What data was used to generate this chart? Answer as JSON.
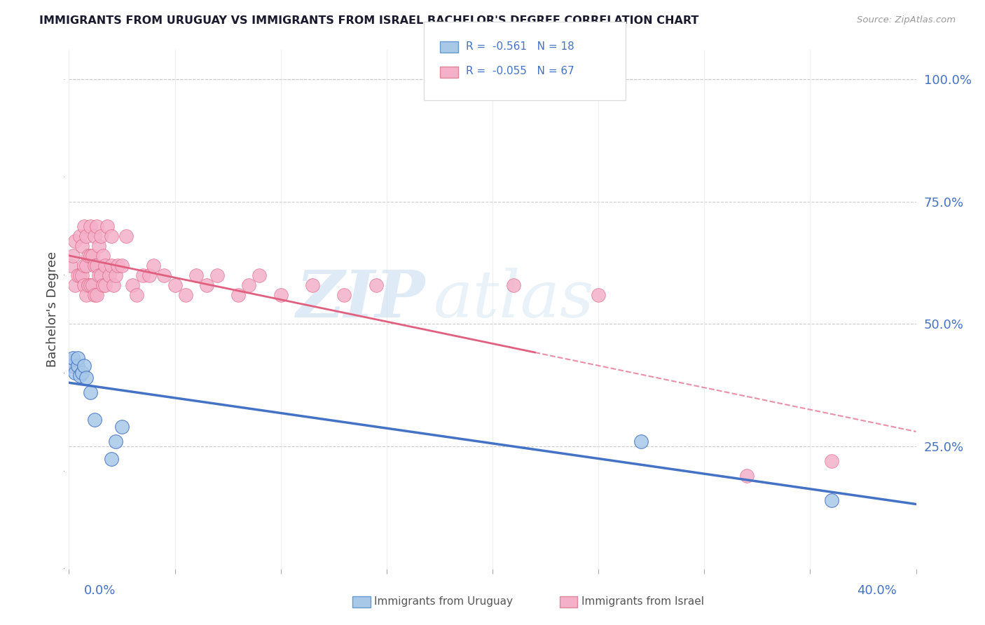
{
  "title": "IMMIGRANTS FROM URUGUAY VS IMMIGRANTS FROM ISRAEL BACHELOR'S DEGREE CORRELATION CHART",
  "source": "Source: ZipAtlas.com",
  "ylabel": "Bachelor's Degree",
  "y_ticks": [
    0.25,
    0.5,
    0.75,
    1.0
  ],
  "y_tick_labels": [
    "25.0%",
    "50.0%",
    "75.0%",
    "100.0%"
  ],
  "xlim": [
    0.0,
    0.4
  ],
  "ylim": [
    0.0,
    1.06
  ],
  "legend_label1": "R =  -0.561   N = 18",
  "legend_label2": "R =  -0.055   N = 67",
  "series_uruguay": {
    "color": "#a8c8e8",
    "edge_color": "#4472c4",
    "line_color": "#4472c4",
    "x": [
      0.001,
      0.001,
      0.002,
      0.002,
      0.003,
      0.004,
      0.004,
      0.005,
      0.006,
      0.007,
      0.008,
      0.01,
      0.012,
      0.02,
      0.022,
      0.025,
      0.27,
      0.36
    ],
    "y": [
      0.415,
      0.425,
      0.415,
      0.43,
      0.4,
      0.415,
      0.43,
      0.395,
      0.4,
      0.415,
      0.39,
      0.36,
      0.305,
      0.225,
      0.26,
      0.29,
      0.26,
      0.14
    ]
  },
  "series_israel": {
    "color": "#f4b0c8",
    "edge_color": "#e06080",
    "line_color": "#e06080",
    "x": [
      0.001,
      0.002,
      0.003,
      0.003,
      0.004,
      0.005,
      0.005,
      0.006,
      0.006,
      0.007,
      0.007,
      0.007,
      0.008,
      0.008,
      0.008,
      0.009,
      0.009,
      0.01,
      0.01,
      0.01,
      0.011,
      0.011,
      0.012,
      0.012,
      0.012,
      0.013,
      0.013,
      0.013,
      0.014,
      0.014,
      0.015,
      0.015,
      0.016,
      0.016,
      0.017,
      0.017,
      0.018,
      0.019,
      0.02,
      0.02,
      0.021,
      0.022,
      0.023,
      0.025,
      0.027,
      0.03,
      0.032,
      0.035,
      0.038,
      0.04,
      0.045,
      0.05,
      0.055,
      0.06,
      0.065,
      0.07,
      0.08,
      0.085,
      0.09,
      0.1,
      0.115,
      0.13,
      0.145,
      0.21,
      0.25,
      0.32,
      0.36
    ],
    "y": [
      0.62,
      0.64,
      0.58,
      0.67,
      0.6,
      0.6,
      0.68,
      0.6,
      0.66,
      0.58,
      0.62,
      0.7,
      0.56,
      0.62,
      0.68,
      0.58,
      0.64,
      0.58,
      0.64,
      0.7,
      0.58,
      0.64,
      0.56,
      0.62,
      0.68,
      0.56,
      0.62,
      0.7,
      0.6,
      0.66,
      0.6,
      0.68,
      0.58,
      0.64,
      0.58,
      0.62,
      0.7,
      0.6,
      0.62,
      0.68,
      0.58,
      0.6,
      0.62,
      0.62,
      0.68,
      0.58,
      0.56,
      0.6,
      0.6,
      0.62,
      0.6,
      0.58,
      0.56,
      0.6,
      0.58,
      0.6,
      0.56,
      0.58,
      0.6,
      0.56,
      0.58,
      0.56,
      0.58,
      0.58,
      0.56,
      0.19,
      0.22
    ]
  },
  "watermark_text": "ZIP",
  "watermark_text2": "atlas",
  "background_color": "#ffffff",
  "grid_color": "#cccccc",
  "legend_color1": "#a8c8e8",
  "legend_color2": "#f4b0c8",
  "text_color": "#4472c4",
  "title_color": "#1a1a2e"
}
